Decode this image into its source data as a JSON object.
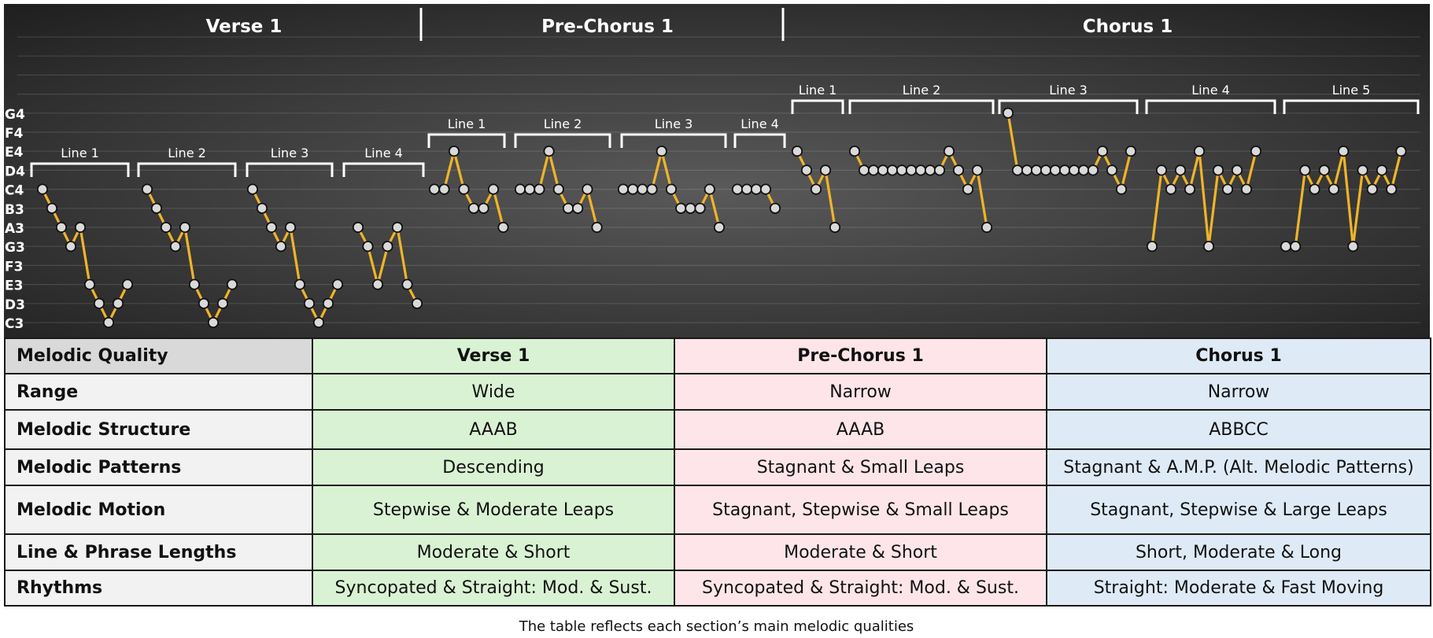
{
  "chart_data": {
    "type": "line",
    "pitch_labels": [
      "C3",
      "D3",
      "E3",
      "F3",
      "G3",
      "A3",
      "B3",
      "C4",
      "D4",
      "E4",
      "F4",
      "G4"
    ],
    "ylim": [
      "C3",
      "G4"
    ],
    "grid": true,
    "sections": [
      {
        "name": "Verse 1",
        "lines": [
          {
            "label": "Line 1",
            "notes": [
              "C4",
              "B3",
              "A3",
              "G3",
              "A3",
              "E3",
              "D3",
              "C3",
              "D3",
              "E3"
            ]
          },
          {
            "label": "Line 2",
            "notes": [
              "C4",
              "B3",
              "A3",
              "G3",
              "A3",
              "E3",
              "D3",
              "C3",
              "D3",
              "E3"
            ]
          },
          {
            "label": "Line 3",
            "notes": [
              "C4",
              "B3",
              "A3",
              "G3",
              "A3",
              "E3",
              "D3",
              "C3",
              "D3",
              "E3"
            ]
          },
          {
            "label": "Line 4",
            "notes": [
              "A3",
              "G3",
              "E3",
              "G3",
              "A3",
              "E3",
              "D3"
            ]
          }
        ]
      },
      {
        "name": "Pre-Chorus 1",
        "lines": [
          {
            "label": "Line 1",
            "notes": [
              "C4",
              "C4",
              "E4",
              "C4",
              "B3",
              "B3",
              "C4",
              "A3"
            ]
          },
          {
            "label": "Line 2",
            "notes": [
              "C4",
              "C4",
              "C4",
              "E4",
              "C4",
              "B3",
              "B3",
              "C4",
              "A3"
            ]
          },
          {
            "label": "Line 3",
            "notes": [
              "C4",
              "C4",
              "C4",
              "C4",
              "E4",
              "C4",
              "B3",
              "B3",
              "B3",
              "C4",
              "A3"
            ]
          },
          {
            "label": "Line 4",
            "notes": [
              "C4",
              "C4",
              "C4",
              "C4",
              "B3"
            ]
          }
        ]
      },
      {
        "name": "Chorus 1",
        "lines": [
          {
            "label": "Line 1",
            "notes": [
              "E4",
              "D4",
              "C4",
              "D4",
              "A3"
            ]
          },
          {
            "label": "Line 2",
            "notes": [
              "E4",
              "D4",
              "D4",
              "D4",
              "D4",
              "D4",
              "D4",
              "D4",
              "D4",
              "D4",
              "E4",
              "D4",
              "C4",
              "D4",
              "A3"
            ]
          },
          {
            "label": "Line 3",
            "notes": [
              "G4",
              "D4",
              "D4",
              "D4",
              "D4",
              "D4",
              "D4",
              "D4",
              "D4",
              "D4",
              "E4",
              "D4",
              "C4",
              "E4"
            ]
          },
          {
            "label": "Line 4",
            "notes": [
              "G3",
              "D4",
              "C4",
              "D4",
              "C4",
              "E4",
              "G3",
              "D4",
              "C4",
              "D4",
              "C4",
              "E4"
            ]
          },
          {
            "label": "Line 5",
            "notes": [
              "G3",
              "G3",
              "D4",
              "C4",
              "D4",
              "C4",
              "E4",
              "G3",
              "D4",
              "C4",
              "D4",
              "C4",
              "E4"
            ]
          }
        ]
      }
    ]
  },
  "table": {
    "header": {
      "label": "Melodic Quality",
      "cols": [
        "Verse 1",
        "Pre-Chorus 1",
        "Chorus 1"
      ]
    },
    "rows": [
      {
        "label": "Range",
        "vals": [
          "Wide",
          "Narrow",
          "Narrow"
        ]
      },
      {
        "label": "Melodic Structure",
        "vals": [
          "AAAB",
          "AAAB",
          "ABBCC"
        ]
      },
      {
        "label": "Melodic Patterns",
        "vals": [
          "Descending",
          "Stagnant & Small Leaps",
          "Stagnant & A.M.P. (Alt. Melodic Patterns)"
        ]
      },
      {
        "label": "Melodic Motion",
        "vals": [
          "Stepwise & Moderate Leaps",
          "Stagnant, Stepwise & Small Leaps",
          "Stagnant, Stepwise & Large Leaps"
        ]
      },
      {
        "label": "Line & Phrase Lengths",
        "vals": [
          "Moderate & Short",
          "Moderate & Short",
          "Short, Moderate & Long"
        ]
      },
      {
        "label": "Rhythms",
        "vals": [
          "Syncopated & Straight: Mod. & Sust.",
          "Syncopated & Straight: Mod. & Sust.",
          "Straight: Moderate & Fast Moving"
        ]
      }
    ]
  },
  "caption": "The table reflects each section’s main melodic qualities",
  "colors": {
    "line": "#f0b429",
    "marker": "#d9d9d9",
    "bracket": "#ffffff",
    "background_center": "#5a5a5a",
    "background_edge": "#1e1e1e",
    "verse": "#d9f2d3",
    "prechorus": "#fde5e9",
    "chorus": "#deeaf6"
  }
}
